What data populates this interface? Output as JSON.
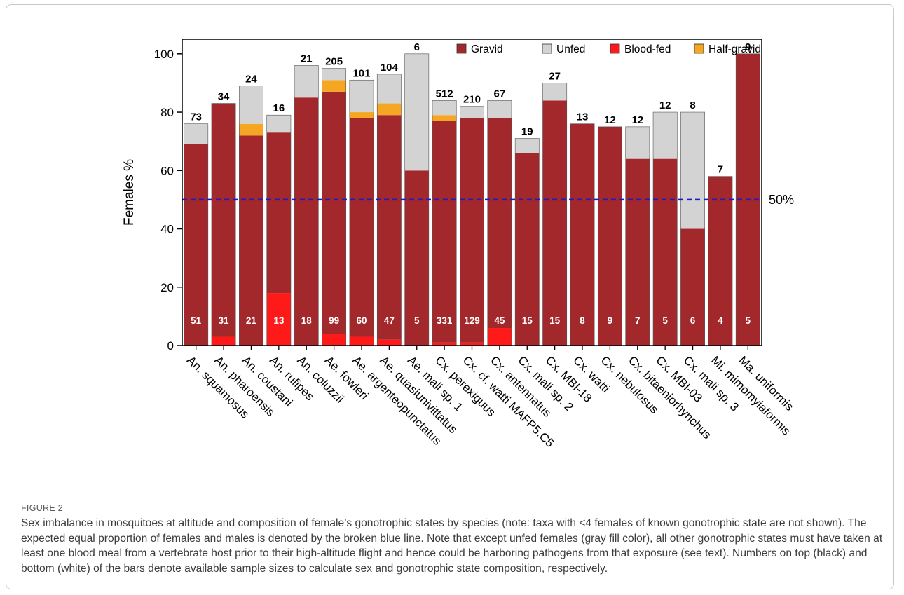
{
  "figure": {
    "label": "FIGURE 2",
    "caption": "Sex imbalance in mosquitoes at altitude and composition of female’s gonotrophic states by species (note: taxa with <4 females of known gonotrophic state are not shown). The expected equal proportion of females and males is denoted by the broken blue line. Note that except unfed females (gray fill color), all other gonotrophic states must have taken at least one blood meal from a vertebrate host prior to their high-altitude flight and hence could be harboring pathogens from that exposure (see text). Numbers on top (black) and bottom (white) of the bars denote available sample sizes to calculate sex and gonotrophic state composition, respectively."
  },
  "chart_data": {
    "type": "bar",
    "stacked": true,
    "ylabel": "Females %",
    "ylim": [
      0,
      105
    ],
    "yticks": [
      0,
      20,
      40,
      60,
      80,
      100
    ],
    "reference_line": {
      "value": 50,
      "label": "50%",
      "color": "#1a1acc",
      "style": "dashed"
    },
    "legend_position": "top-right",
    "colors": {
      "Gravid": "#a3282b",
      "Unfed": "#d3d3d3",
      "Blood-fed": "#ff1a1a",
      "Half-gravid": "#f5a623"
    },
    "legend": [
      "Gravid",
      "Unfed",
      "Blood-fed",
      "Half-gravid"
    ],
    "categories": [
      "An. squamosus",
      "An. pharoensis",
      "An. coustani",
      "An. rufipes",
      "An. coluzzii",
      "Ae. fowleri",
      "Ae. argenteopunctatus",
      "Ae. quasiunivittatus",
      "Ae. mali sp. 1",
      "Cx. perexiguus",
      "Cx. cf. watti MAFP5.C5",
      "Cx. antennatus",
      "Cx. mali sp. 2",
      "Cx. MBI-18",
      "Cx. watti",
      "Cx. nebulosus",
      "Cx. bitaeniorhynchus",
      "Cx. MBI-03",
      "Cx. mali sp. 3",
      "Mi. mimomyiaformis",
      "Ma. uniformis"
    ],
    "series": [
      {
        "name": "Blood-fed",
        "values": [
          0,
          3,
          0,
          18,
          0,
          4,
          3,
          2,
          0,
          1,
          1,
          6,
          0,
          0,
          0,
          0,
          0,
          0,
          0,
          0,
          0
        ]
      },
      {
        "name": "Gravid",
        "values": [
          69,
          80,
          72,
          55,
          85,
          83,
          75,
          77,
          60,
          76,
          77,
          72,
          66,
          84,
          76,
          75,
          64,
          64,
          40,
          58,
          100
        ]
      },
      {
        "name": "Half-gravid",
        "values": [
          0,
          0,
          4,
          0,
          0,
          4,
          2,
          4,
          0,
          2,
          0,
          0,
          0,
          0,
          0,
          0,
          0,
          0,
          0,
          0,
          0
        ]
      },
      {
        "name": "Unfed",
        "values": [
          7,
          0,
          13,
          6,
          11,
          4,
          11,
          10,
          40,
          5,
          4,
          6,
          5,
          6,
          0,
          0,
          11,
          16,
          40,
          0,
          0
        ]
      }
    ],
    "top_labels": [
      "73",
      "34",
      "24",
      "16",
      "21",
      "205",
      "101",
      "104",
      "6",
      "512",
      "210",
      "67",
      "19",
      "27",
      "13",
      "12",
      "12",
      "12",
      "8",
      "7",
      "9"
    ],
    "bottom_labels": [
      "51",
      "31",
      "21",
      "13",
      "18",
      "99",
      "60",
      "47",
      "5",
      "331",
      "129",
      "45",
      "15",
      "15",
      "8",
      "9",
      "7",
      "5",
      "6",
      "4",
      "5"
    ]
  }
}
